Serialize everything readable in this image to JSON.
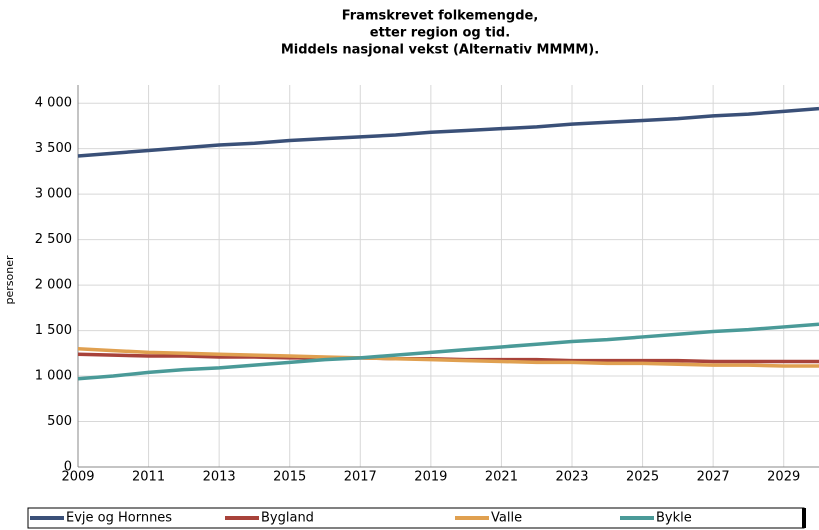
{
  "chart_data": {
    "type": "line",
    "title": [
      "Framskrevet folkemengde,",
      "etter region og tid.",
      "Middels nasjonal vekst (Alternativ MMMM)."
    ],
    "y_label": "personer",
    "x": [
      2009,
      2010,
      2011,
      2012,
      2013,
      2014,
      2015,
      2016,
      2017,
      2018,
      2019,
      2020,
      2021,
      2022,
      2023,
      2024,
      2025,
      2026,
      2027,
      2028,
      2029,
      2030
    ],
    "xlim": [
      2009,
      2030
    ],
    "xticks": [
      2009,
      2011,
      2013,
      2015,
      2017,
      2019,
      2021,
      2023,
      2025,
      2027,
      2029
    ],
    "ylim": [
      0,
      4200
    ],
    "yticks": [
      0,
      500,
      {
        "value": 1000,
        "label": "1 000"
      },
      {
        "value": 1500,
        "label": "1 500"
      },
      {
        "value": 2000,
        "label": "2 000"
      },
      {
        "value": 2500,
        "label": "2 500"
      },
      {
        "value": 3000,
        "label": "3 000"
      },
      {
        "value": 3500,
        "label": "3 500"
      },
      {
        "value": 4000,
        "label": "4 000"
      }
    ],
    "grid": true,
    "series": [
      {
        "name": "Evje og Hornnes",
        "color": "#3a5078",
        "values": [
          3420,
          3450,
          3480,
          3510,
          3540,
          3560,
          3590,
          3610,
          3630,
          3650,
          3680,
          3700,
          3720,
          3740,
          3770,
          3790,
          3810,
          3830,
          3860,
          3880,
          3910,
          3940
        ]
      },
      {
        "name": "Bygland",
        "color": "#a8423a",
        "values": [
          1240,
          1230,
          1220,
          1220,
          1210,
          1210,
          1200,
          1200,
          1200,
          1190,
          1190,
          1180,
          1180,
          1180,
          1170,
          1170,
          1170,
          1170,
          1160,
          1160,
          1160,
          1160
        ]
      },
      {
        "name": "Valle",
        "color": "#e0a050",
        "values": [
          1300,
          1280,
          1260,
          1250,
          1240,
          1230,
          1220,
          1210,
          1200,
          1190,
          1180,
          1170,
          1160,
          1150,
          1150,
          1140,
          1140,
          1130,
          1120,
          1120,
          1110,
          1110
        ]
      },
      {
        "name": "Bykle",
        "color": "#4a9a98",
        "values": [
          970,
          1000,
          1040,
          1070,
          1090,
          1120,
          1150,
          1180,
          1200,
          1230,
          1260,
          1290,
          1320,
          1350,
          1380,
          1400,
          1430,
          1460,
          1490,
          1510,
          1540,
          1570
        ]
      }
    ]
  }
}
